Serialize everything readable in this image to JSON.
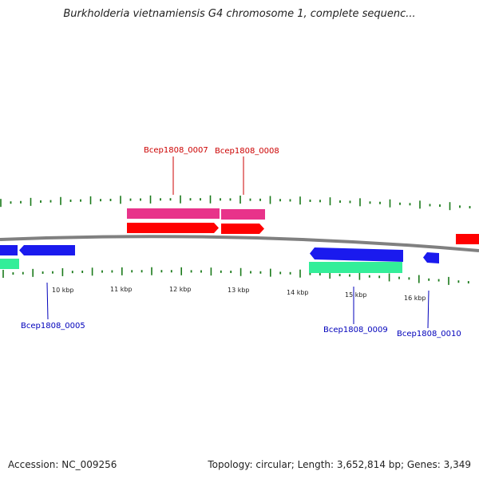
{
  "title": "Burkholderia vietnamiensis G4 chromosome 1, complete sequenc...",
  "footer": {
    "accession": "Accession: NC_009256",
    "summary": "Topology: circular; Length: 3,652,814 bp; Genes: 3,349"
  },
  "colors": {
    "backbone": "#808080",
    "tick": "#1a7a1a",
    "forward_cds": "#ff0000",
    "forward_gene": "#e8338a",
    "reverse_cds": "#1a1aee",
    "reverse_gene": "#33ee99",
    "label_forward": "#cc0000",
    "label_reverse": "#0000bb"
  },
  "axis_labels": [
    "10 kbp",
    "11 kbp",
    "12 kbp",
    "13 kbp",
    "14 kbp",
    "15 kbp",
    "16 kbp"
  ],
  "gene_labels": [
    {
      "text": "Bcep1808_0007",
      "strand": "forward"
    },
    {
      "text": "Bcep1808_0008",
      "strand": "forward"
    },
    {
      "text": "Bcep1808_0005",
      "strand": "reverse"
    },
    {
      "text": "Bcep1808_0009",
      "strand": "reverse"
    },
    {
      "text": "Bcep1808_0010",
      "strand": "reverse"
    }
  ]
}
